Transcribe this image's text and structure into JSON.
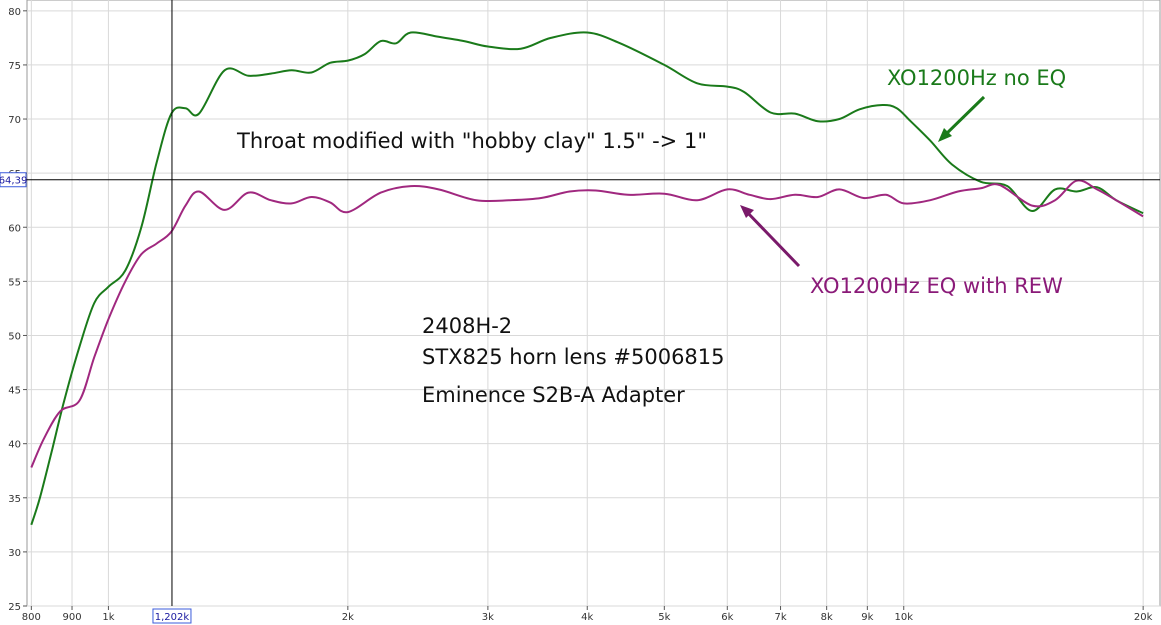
{
  "chart_data": {
    "type": "line",
    "x_scale": "log",
    "xlim": [
      790,
      21000
    ],
    "ylim": [
      25,
      81
    ],
    "grid": true,
    "x_ticks": [
      {
        "value": 800,
        "label": "800"
      },
      {
        "value": 900,
        "label": "900"
      },
      {
        "value": 1000,
        "label": "1k"
      },
      {
        "value": 2000,
        "label": "2k"
      },
      {
        "value": 3000,
        "label": "3k"
      },
      {
        "value": 4000,
        "label": "4k"
      },
      {
        "value": 5000,
        "label": "5k"
      },
      {
        "value": 6000,
        "label": "6k"
      },
      {
        "value": 7000,
        "label": "7k"
      },
      {
        "value": 8000,
        "label": "8k"
      },
      {
        "value": 9000,
        "label": "9k"
      },
      {
        "value": 10000,
        "label": "10k"
      },
      {
        "value": 20000,
        "label": "20k"
      }
    ],
    "y_ticks": [
      {
        "value": 25,
        "label": "25"
      },
      {
        "value": 30,
        "label": "30"
      },
      {
        "value": 35,
        "label": "35"
      },
      {
        "value": 40,
        "label": "40"
      },
      {
        "value": 45,
        "label": "45"
      },
      {
        "value": 50,
        "label": "50"
      },
      {
        "value": 55,
        "label": "55"
      },
      {
        "value": 60,
        "label": "60"
      },
      {
        "value": 65,
        "label": "65"
      },
      {
        "value": 70,
        "label": "70"
      },
      {
        "value": 75,
        "label": "75"
      },
      {
        "value": 80,
        "label": "80"
      }
    ],
    "cursor": {
      "x": 1202,
      "x_label": "1,202k",
      "y": 64.39,
      "y_label": "64,39"
    },
    "series": [
      {
        "name": "XO1200Hz no EQ",
        "color": "#1a7a1a",
        "points": [
          [
            800,
            32.5
          ],
          [
            820,
            35
          ],
          [
            850,
            39.5
          ],
          [
            880,
            44
          ],
          [
            920,
            49
          ],
          [
            960,
            53
          ],
          [
            1000,
            54.5
          ],
          [
            1050,
            56
          ],
          [
            1100,
            60
          ],
          [
            1150,
            66
          ],
          [
            1200,
            70.5
          ],
          [
            1250,
            71
          ],
          [
            1300,
            70.5
          ],
          [
            1400,
            74.5
          ],
          [
            1500,
            74
          ],
          [
            1600,
            74.2
          ],
          [
            1700,
            74.5
          ],
          [
            1800,
            74.3
          ],
          [
            1900,
            75.2
          ],
          [
            2000,
            75.4
          ],
          [
            2100,
            76
          ],
          [
            2200,
            77.2
          ],
          [
            2300,
            77
          ],
          [
            2400,
            78
          ],
          [
            2600,
            77.6
          ],
          [
            2800,
            77.2
          ],
          [
            3000,
            76.7
          ],
          [
            3300,
            76.5
          ],
          [
            3600,
            77.5
          ],
          [
            4000,
            78
          ],
          [
            4400,
            77
          ],
          [
            5000,
            75
          ],
          [
            5500,
            73.3
          ],
          [
            6000,
            73
          ],
          [
            6300,
            72.5
          ],
          [
            6800,
            70.6
          ],
          [
            7300,
            70.5
          ],
          [
            7800,
            69.8
          ],
          [
            8300,
            70
          ],
          [
            8800,
            70.9
          ],
          [
            9400,
            71.3
          ],
          [
            9800,
            71
          ],
          [
            10200,
            69.8
          ],
          [
            10800,
            68
          ],
          [
            11500,
            65.8
          ],
          [
            12500,
            64.2
          ],
          [
            13500,
            63.8
          ],
          [
            14500,
            61.5
          ],
          [
            15500,
            63.5
          ],
          [
            16500,
            63.3
          ],
          [
            17500,
            63.7
          ],
          [
            18500,
            62.5
          ],
          [
            20000,
            61.3
          ]
        ]
      },
      {
        "name": "XO1200Hz EQ with REW",
        "color": "#a0287f",
        "points": [
          [
            800,
            37.8
          ],
          [
            830,
            40.5
          ],
          [
            870,
            43
          ],
          [
            920,
            44
          ],
          [
            960,
            48
          ],
          [
            1000,
            51.5
          ],
          [
            1050,
            55
          ],
          [
            1100,
            57.5
          ],
          [
            1150,
            58.5
          ],
          [
            1200,
            59.6
          ],
          [
            1250,
            62
          ],
          [
            1300,
            63.3
          ],
          [
            1400,
            61.6
          ],
          [
            1500,
            63.2
          ],
          [
            1600,
            62.5
          ],
          [
            1700,
            62.2
          ],
          [
            1800,
            62.8
          ],
          [
            1900,
            62.3
          ],
          [
            2000,
            61.4
          ],
          [
            2200,
            63.2
          ],
          [
            2400,
            63.8
          ],
          [
            2600,
            63.5
          ],
          [
            2900,
            62.5
          ],
          [
            3200,
            62.5
          ],
          [
            3500,
            62.7
          ],
          [
            3800,
            63.3
          ],
          [
            4100,
            63.4
          ],
          [
            4500,
            63
          ],
          [
            5000,
            63.1
          ],
          [
            5500,
            62.5
          ],
          [
            6000,
            63.5
          ],
          [
            6400,
            63
          ],
          [
            6800,
            62.6
          ],
          [
            7300,
            63
          ],
          [
            7800,
            62.8
          ],
          [
            8300,
            63.5
          ],
          [
            8900,
            62.7
          ],
          [
            9500,
            63
          ],
          [
            10000,
            62.2
          ],
          [
            10800,
            62.5
          ],
          [
            11700,
            63.3
          ],
          [
            12500,
            63.6
          ],
          [
            13200,
            63.9
          ],
          [
            14500,
            62
          ],
          [
            15500,
            62.5
          ],
          [
            16500,
            64.3
          ],
          [
            17500,
            63.5
          ],
          [
            18500,
            62.5
          ],
          [
            20000,
            61
          ]
        ]
      }
    ],
    "annotations": [
      {
        "id": "title",
        "text": "Throat modified with \"hobby clay\" 1.5\" -> 1\"",
        "color": "#111111"
      },
      {
        "id": "green-label",
        "text": "XO1200Hz no EQ",
        "color": "#1a7a1a"
      },
      {
        "id": "purple-label",
        "text": "XO1200Hz EQ with REW",
        "color": "#8a1a78"
      },
      {
        "id": "info-1",
        "text": "2408H-2",
        "color": "#111111"
      },
      {
        "id": "info-2",
        "text": "STX825 horn lens #5006815",
        "color": "#111111"
      },
      {
        "id": "info-3",
        "text": "Eminence S2B-A Adapter",
        "color": "#111111"
      }
    ]
  }
}
